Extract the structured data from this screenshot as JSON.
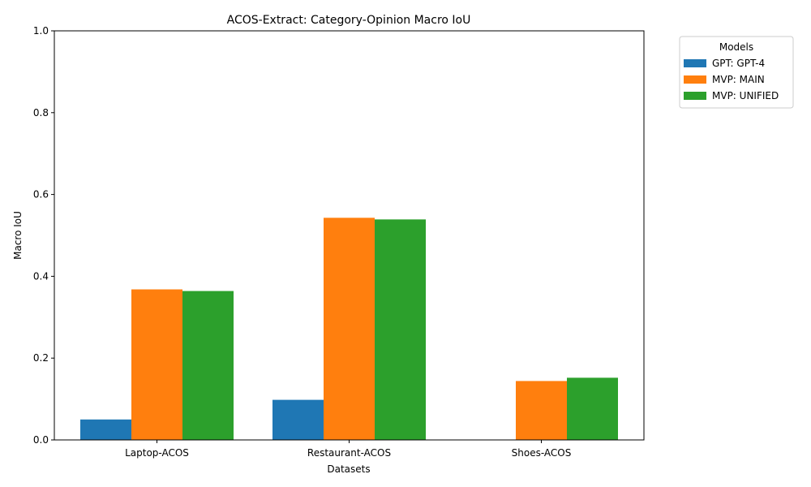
{
  "chart_data": {
    "type": "bar",
    "title": "ACOS-Extract: Category-Opinion Macro IoU",
    "xlabel": "Datasets",
    "ylabel": "Macro IoU",
    "ylim": [
      0,
      1
    ],
    "yticks": [
      "0.0",
      "0.2",
      "0.4",
      "0.6",
      "0.8",
      "1.0"
    ],
    "categories": [
      "Laptop-ACOS",
      "Restaurant-ACOS",
      "Shoes-ACOS"
    ],
    "legend": {
      "title": "Models",
      "placement": "outside-top-right"
    },
    "grid": false,
    "series": [
      {
        "name": "GPT: GPT-4",
        "color": "#1f77b4",
        "values": [
          0.05,
          0.098,
          0.0
        ]
      },
      {
        "name": "MVP: MAIN",
        "color": "#ff7f0e",
        "values": [
          0.368,
          0.543,
          0.144
        ]
      },
      {
        "name": "MVP: UNIFIED",
        "color": "#2ca02c",
        "values": [
          0.364,
          0.539,
          0.152
        ]
      }
    ]
  }
}
